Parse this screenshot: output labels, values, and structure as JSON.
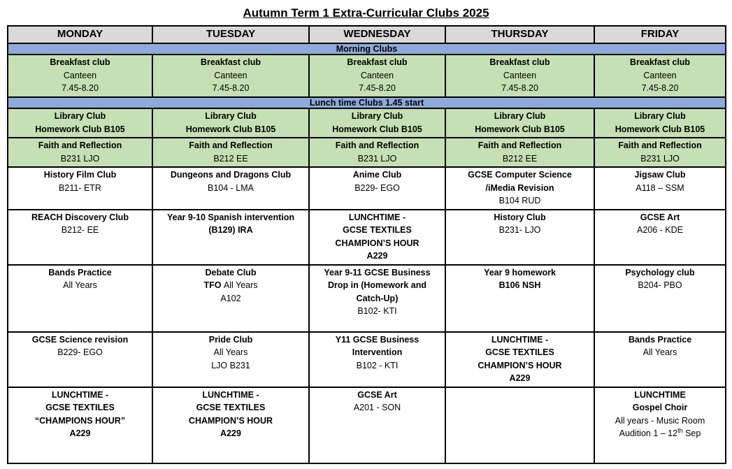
{
  "page_title": "Autumn Term 1 Extra-Curricular Clubs 2025",
  "colors": {
    "header_bg": "#D9D9D9",
    "banner_bg": "#8EAADB",
    "green_bg": "#C5E0B4",
    "border": "#000000",
    "text": "#000000"
  },
  "table": {
    "day_headers": [
      "MONDAY",
      "TUESDAY",
      "WEDNESDAY",
      "THURSDAY",
      "FRIDAY"
    ],
    "rows": [
      {
        "type": "banner",
        "name": "morning-clubs-banner",
        "text": "Morning Clubs",
        "h": 14
      },
      {
        "type": "cells",
        "name": "breakfast-club-row",
        "bg": "green",
        "h": 56,
        "cells": [
          [
            [
              {
                "t": "Breakfast club",
                "b": true
              }
            ],
            [
              {
                "t": "Canteen",
                "b": false
              }
            ],
            [
              {
                "t": "7.45-8.20",
                "b": false
              }
            ]
          ],
          [
            [
              {
                "t": "Breakfast club",
                "b": true
              }
            ],
            [
              {
                "t": "Canteen",
                "b": false
              }
            ],
            [
              {
                "t": "7.45-8.20",
                "b": false
              }
            ]
          ],
          [
            [
              {
                "t": "Breakfast club",
                "b": true
              }
            ],
            [
              {
                "t": "Canteen",
                "b": false
              }
            ],
            [
              {
                "t": "7.45-8.20",
                "b": false
              }
            ]
          ],
          [
            [
              {
                "t": "Breakfast club",
                "b": true
              }
            ],
            [
              {
                "t": "Canteen",
                "b": false
              }
            ],
            [
              {
                "t": "7.45-8.20",
                "b": false
              }
            ]
          ],
          [
            [
              {
                "t": "Breakfast club",
                "b": true
              }
            ],
            [
              {
                "t": "Canteen",
                "b": false
              }
            ],
            [
              {
                "t": "7.45-8.20",
                "b": false
              }
            ]
          ]
        ]
      },
      {
        "type": "banner",
        "name": "lunch-clubs-banner",
        "text": "Lunch time Clubs 1.45 start",
        "h": 14
      },
      {
        "type": "cells",
        "name": "library-club-row",
        "bg": "green",
        "h": 36,
        "cells": [
          [
            [
              {
                "t": "Library Club",
                "b": true
              }
            ],
            [
              {
                "t": "Homework Club B105",
                "b": true
              }
            ]
          ],
          [
            [
              {
                "t": "Library Club",
                "b": true
              }
            ],
            [
              {
                "t": "Homework Club B105",
                "b": true
              }
            ]
          ],
          [
            [
              {
                "t": "Library Club",
                "b": true
              }
            ],
            [
              {
                "t": "Homework Club B105",
                "b": true
              }
            ]
          ],
          [
            [
              {
                "t": "Library Club",
                "b": true
              }
            ],
            [
              {
                "t": "Homework Club B105",
                "b": true
              }
            ]
          ],
          [
            [
              {
                "t": "Library Club",
                "b": true
              }
            ],
            [
              {
                "t": "Homework Club B105",
                "b": true
              }
            ]
          ]
        ]
      },
      {
        "type": "cells",
        "name": "faith-reflection-row",
        "bg": "green",
        "h": 35,
        "cells": [
          [
            [
              {
                "t": "Faith and Reflection",
                "b": true
              }
            ],
            [
              {
                "t": "B231 LJO",
                "b": false
              }
            ]
          ],
          [
            [
              {
                "t": "Faith and Reflection",
                "b": true
              }
            ],
            [
              {
                "t": "B212 EE",
                "b": false
              }
            ]
          ],
          [
            [
              {
                "t": "Faith and Reflection",
                "b": true
              }
            ],
            [
              {
                "t": "B231 LJO",
                "b": false
              }
            ]
          ],
          [
            [
              {
                "t": "Faith and Reflection",
                "b": true
              }
            ],
            [
              {
                "t": "B212 EE",
                "b": false
              }
            ]
          ],
          [
            [
              {
                "t": "Faith and Reflection",
                "b": true
              }
            ],
            [
              {
                "t": "B231 LJO",
                "b": false
              }
            ]
          ]
        ]
      },
      {
        "type": "cells",
        "name": "lunch-row-1",
        "bg": "white",
        "h": 53,
        "cells": [
          [
            [
              {
                "t": "History Film Club",
                "b": true
              }
            ],
            [
              {
                "t": "B211- ETR",
                "b": false
              }
            ]
          ],
          [
            [
              {
                "t": "Dungeons and Dragons Club",
                "b": true
              }
            ],
            [
              {
                "t": "B104 - LMA",
                "b": false
              }
            ]
          ],
          [
            [
              {
                "t": "Anime Club",
                "b": true
              }
            ],
            [
              {
                "t": "B229- EGO",
                "b": false
              }
            ]
          ],
          [
            [
              {
                "t": "GCSE Computer Science",
                "b": true
              }
            ],
            [
              {
                "t": "/iMedia Revision",
                "b": true
              }
            ],
            [
              {
                "t": "B104 RUD",
                "b": false
              }
            ]
          ],
          [
            [
              {
                "t": "Jigsaw Club",
                "b": true
              }
            ],
            [
              {
                "t": "A118 – SSM",
                "b": false
              }
            ]
          ]
        ]
      },
      {
        "type": "cells",
        "name": "lunch-row-2",
        "bg": "white",
        "h": 71,
        "cells": [
          [
            [
              {
                "t": "REACH Discovery Club",
                "b": true
              }
            ],
            [
              {
                "t": "B212- EE",
                "b": false
              }
            ]
          ],
          [
            [
              {
                "t": "Year 9-10 Spanish intervention",
                "b": true
              }
            ],
            [
              {
                "t": "(B129) IRA",
                "b": true
              }
            ]
          ],
          [
            [
              {
                "t": "LUNCHTIME -",
                "b": true
              }
            ],
            [
              {
                "t": "GCSE TEXTILES",
                "b": true
              }
            ],
            [
              {
                "t": "CHAMPION’S HOUR",
                "b": true
              }
            ],
            [
              {
                "t": "A229",
                "b": true
              }
            ]
          ],
          [
            [
              {
                "t": "History Club",
                "b": true
              }
            ],
            [
              {
                "t": "B231- LJO",
                "b": false
              }
            ]
          ],
          [
            [
              {
                "t": "GCSE Art",
                "b": true
              }
            ],
            [
              {
                "t": "A206 - KDE",
                "b": false
              }
            ]
          ]
        ]
      },
      {
        "type": "cells",
        "name": "lunch-row-3",
        "bg": "white",
        "h": 91,
        "cells": [
          [
            [
              {
                "t": "Bands Practice",
                "b": true
              }
            ],
            [
              {
                "t": "All Years",
                "b": false
              }
            ]
          ],
          [
            [
              {
                "t": "Debate Club",
                "b": true
              }
            ],
            [
              {
                "t": "TFO ",
                "b": true
              },
              {
                "t": "All Years",
                "b": false
              }
            ],
            [
              {
                "t": "A102",
                "b": false
              }
            ]
          ],
          [
            [
              {
                "t": "Year 9-11 GCSE Business",
                "b": true
              }
            ],
            [
              {
                "t": "Drop in (Homework and",
                "b": true
              }
            ],
            [
              {
                "t": "Catch-Up)",
                "b": true
              }
            ],
            [
              {
                "t": "B102- KTI",
                "b": false
              }
            ]
          ],
          [
            [
              {
                "t": "Year 9 homework",
                "b": true
              }
            ],
            [
              {
                "t": "B106 NSH",
                "b": true
              }
            ]
          ],
          [
            [
              {
                "t": "Psychology club",
                "b": true
              }
            ],
            [
              {
                "t": "B204- PBO",
                "b": false
              }
            ]
          ]
        ]
      },
      {
        "type": "cells",
        "name": "lunch-row-4",
        "bg": "white",
        "h": 69,
        "cells": [
          [
            [
              {
                "t": "GCSE Science revision",
                "b": true
              }
            ],
            [
              {
                "t": "B229- EGO",
                "b": false
              }
            ]
          ],
          [
            [
              {
                "t": "Pride Club",
                "b": true
              }
            ],
            [
              {
                "t": "All Years",
                "b": false
              }
            ],
            [
              {
                "t": "LJO B231",
                "b": false
              }
            ]
          ],
          [
            [
              {
                "t": "Y11 GCSE Business",
                "b": true
              }
            ],
            [
              {
                "t": "Intervention",
                "b": true
              }
            ],
            [
              {
                "t": "B102 - KTI",
                "b": false
              }
            ]
          ],
          [
            [
              {
                "t": "LUNCHTIME -",
                "b": true
              }
            ],
            [
              {
                "t": "GCSE TEXTILES",
                "b": true
              }
            ],
            [
              {
                "t": "CHAMPION’S HOUR",
                "b": true
              }
            ],
            [
              {
                "t": "A229",
                "b": true
              }
            ]
          ],
          [
            [
              {
                "t": "Bands Practice",
                "b": true
              }
            ],
            [
              {
                "t": "All Years",
                "b": false
              }
            ]
          ]
        ]
      },
      {
        "type": "cells",
        "name": "lunch-row-5",
        "bg": "white",
        "h": 104,
        "cells": [
          [
            [
              {
                "t": "LUNCHTIME -",
                "b": true
              }
            ],
            [
              {
                "t": "GCSE TEXTILES",
                "b": true
              }
            ],
            [
              {
                "t": "“CHAMPIONS HOUR”",
                "b": true
              }
            ],
            [
              {
                "t": "A229",
                "b": true
              }
            ]
          ],
          [
            [
              {
                "t": "LUNCHTIME -",
                "b": true
              }
            ],
            [
              {
                "t": "GCSE TEXTILES",
                "b": true
              }
            ],
            [
              {
                "t": "CHAMPION’S HOUR",
                "b": true
              }
            ],
            [
              {
                "t": "A229",
                "b": true
              }
            ]
          ],
          [
            [
              {
                "t": "GCSE Art",
                "b": true
              }
            ],
            [
              {
                "t": "A201 - SON",
                "b": false
              }
            ]
          ],
          [],
          [
            [
              {
                "t": "LUNCHTIME",
                "b": true
              }
            ],
            [
              {
                "t": "Gospel Choir",
                "b": true
              }
            ],
            [
              {
                "t": "All years  - Music Room",
                "b": false
              }
            ],
            [
              {
                "t": "Audition 1 – 12",
                "b": false
              },
              {
                "t": "th",
                "b": false,
                "sup": true
              },
              {
                "t": " Sep",
                "b": false
              }
            ]
          ]
        ]
      }
    ]
  }
}
